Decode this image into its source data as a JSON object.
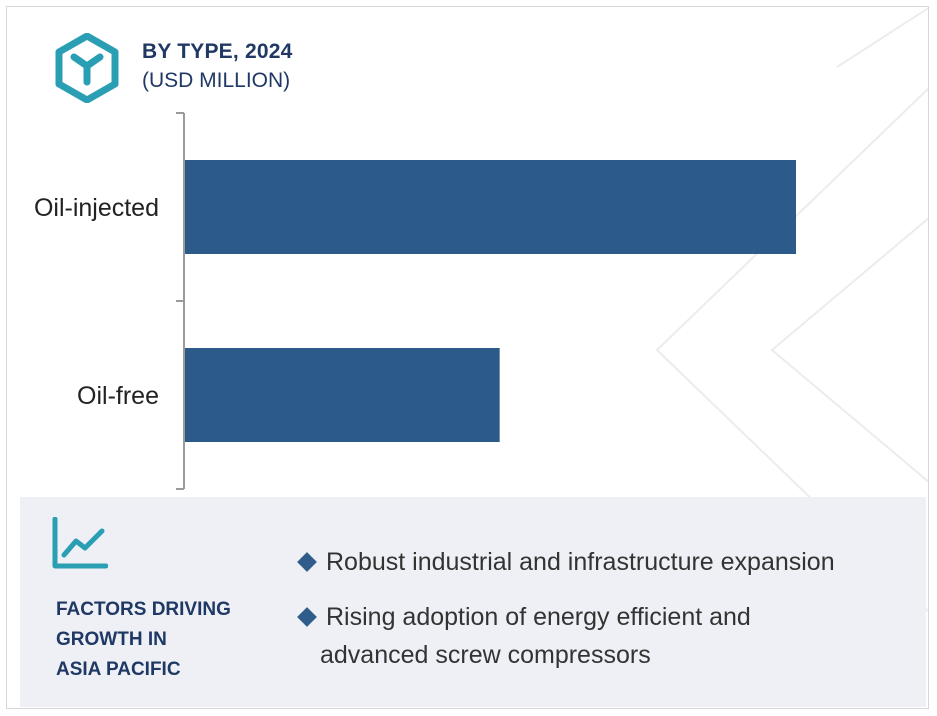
{
  "header": {
    "title": "BY TYPE, 2024",
    "subtitle": "(USD MILLION)",
    "icon": "cube-logo-icon"
  },
  "colors": {
    "bar": "#2d5b89",
    "title": "#1f3864",
    "icon": "#2a9fb4",
    "panel": "#eef0f5"
  },
  "chart_data": {
    "type": "bar",
    "orientation": "horizontal",
    "categories": [
      "Oil-injected",
      "Oil-free"
    ],
    "values": [
      100,
      51.5
    ],
    "title": "BY TYPE, 2024",
    "subtitle": "(USD MILLION)",
    "xlabel": "",
    "ylabel": "",
    "xlim": [
      0,
      100
    ],
    "grid": false,
    "value_labels": false
  },
  "factors": {
    "icon": "trend-chart-icon",
    "title_lines": [
      "FACTORS DRIVING",
      "GROWTH IN",
      "ASIA PACIFIC"
    ],
    "items": [
      {
        "lines": [
          "Robust industrial and infrastructure expansion"
        ]
      },
      {
        "lines": [
          "Rising adoption of energy efficient and",
          "advanced screw compressors"
        ]
      }
    ]
  }
}
